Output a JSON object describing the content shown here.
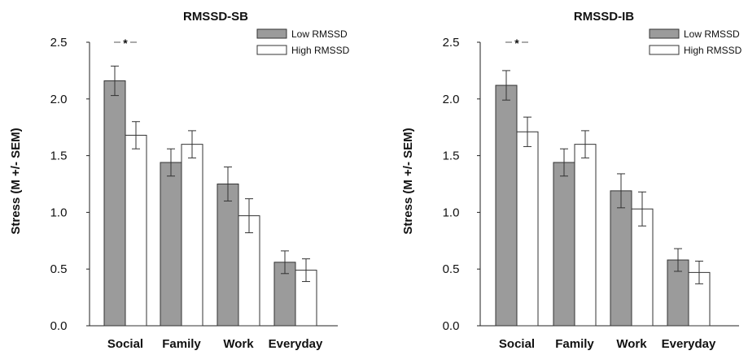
{
  "chart_data": [
    {
      "type": "bar",
      "title": "RMSSD-SB",
      "ylabel": "Stress (M +/- SEM)",
      "xlabel": "",
      "ylim": [
        0,
        2.5
      ],
      "yticks": [
        "0.0",
        "0.5",
        "1.0",
        "1.5",
        "2.0",
        "2.5"
      ],
      "categories": [
        "Social",
        "Family",
        "Work",
        "Everyday"
      ],
      "legend_position": "top-right",
      "series": [
        {
          "name": "Low RMSSD",
          "color": "#9b9b9b",
          "values": [
            2.16,
            1.44,
            1.25,
            0.56
          ],
          "sem": [
            0.13,
            0.12,
            0.15,
            0.1
          ]
        },
        {
          "name": "High RMSSD",
          "color": "#ffffff",
          "values": [
            1.68,
            1.6,
            0.97,
            0.49
          ],
          "sem": [
            0.12,
            0.12,
            0.15,
            0.1
          ]
        }
      ],
      "annotation": "*"
    },
    {
      "type": "bar",
      "title": "RMSSD-IB",
      "ylabel": "Stress (M +/- SEM)",
      "xlabel": "",
      "ylim": [
        0,
        2.5
      ],
      "yticks": [
        "0.0",
        "0.5",
        "1.0",
        "1.5",
        "2.0",
        "2.5"
      ],
      "categories": [
        "Social",
        "Family",
        "Work",
        "Everyday"
      ],
      "legend_position": "top-right",
      "series": [
        {
          "name": "Low RMSSD",
          "color": "#9b9b9b",
          "values": [
            2.12,
            1.44,
            1.19,
            0.58
          ],
          "sem": [
            0.13,
            0.12,
            0.15,
            0.1
          ]
        },
        {
          "name": "High RMSSD",
          "color": "#ffffff",
          "values": [
            1.71,
            1.6,
            1.03,
            0.47
          ],
          "sem": [
            0.13,
            0.12,
            0.15,
            0.1
          ]
        }
      ],
      "annotation": "*"
    }
  ]
}
